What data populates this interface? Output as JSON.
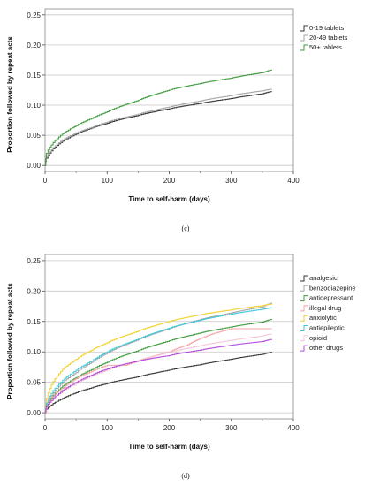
{
  "chart_data": [
    {
      "type": "line",
      "step": true,
      "panel_label": "(c)",
      "xlabel": "Time to self-harm (days)",
      "ylabel": "Proportion followed by repeat acts",
      "xlim": [
        0,
        400
      ],
      "ylim": [
        -0.01,
        0.26
      ],
      "xticks": [
        0,
        100,
        200,
        300,
        400
      ],
      "yticks": [
        0.0,
        0.05,
        0.1,
        0.15,
        0.2,
        0.25
      ],
      "ytick_labels": [
        "0.00",
        "0.05",
        "0.10",
        "0.15",
        "0.20",
        "0.25"
      ],
      "grid": "horizontal",
      "legend_position": "right",
      "series": [
        {
          "name": "0-19 tablets",
          "color": "#333333",
          "x": [
            0,
            2,
            10,
            25,
            50,
            75,
            100,
            150,
            200,
            250,
            300,
            350,
            365
          ],
          "y": [
            0,
            0.012,
            0.024,
            0.038,
            0.052,
            0.062,
            0.07,
            0.083,
            0.094,
            0.103,
            0.111,
            0.119,
            0.123
          ]
        },
        {
          "name": "20-49 tablets",
          "color": "#a6a6a6",
          "x": [
            0,
            2,
            10,
            25,
            50,
            75,
            100,
            150,
            200,
            250,
            300,
            350,
            365
          ],
          "y": [
            0,
            0.014,
            0.026,
            0.04,
            0.054,
            0.063,
            0.072,
            0.085,
            0.097,
            0.107,
            0.116,
            0.124,
            0.127
          ]
        },
        {
          "name": "50+ tablets",
          "color": "#3c9a3c",
          "x": [
            0,
            2,
            10,
            25,
            50,
            75,
            100,
            150,
            200,
            250,
            300,
            350,
            365
          ],
          "y": [
            0,
            0.02,
            0.034,
            0.05,
            0.066,
            0.078,
            0.089,
            0.108,
            0.125,
            0.136,
            0.145,
            0.154,
            0.159
          ]
        }
      ]
    },
    {
      "type": "line",
      "step": true,
      "panel_label": "(d)",
      "xlabel": "Time to self-harm (days)",
      "ylabel": "Proportion followed by repeat acts",
      "xlim": [
        0,
        400
      ],
      "ylim": [
        -0.01,
        0.26
      ],
      "xticks": [
        0,
        100,
        200,
        300,
        400
      ],
      "yticks": [
        0.0,
        0.05,
        0.1,
        0.15,
        0.2,
        0.25
      ],
      "ytick_labels": [
        "0.00",
        "0.05",
        "0.10",
        "0.15",
        "0.20",
        "0.25"
      ],
      "grid": "horizontal",
      "legend_position": "right",
      "series": [
        {
          "name": "analgesic",
          "color": "#333333",
          "x": [
            0,
            2,
            10,
            25,
            50,
            75,
            100,
            150,
            200,
            250,
            300,
            350,
            365
          ],
          "y": [
            0,
            0.006,
            0.013,
            0.022,
            0.033,
            0.041,
            0.048,
            0.059,
            0.07,
            0.079,
            0.088,
            0.096,
            0.1
          ]
        },
        {
          "name": "benzodiazepine",
          "color": "#a6a6a6",
          "x": [
            0,
            2,
            10,
            25,
            50,
            75,
            100,
            150,
            200,
            250,
            300,
            350,
            365
          ],
          "y": [
            0,
            0.014,
            0.028,
            0.047,
            0.066,
            0.083,
            0.098,
            0.12,
            0.138,
            0.153,
            0.164,
            0.174,
            0.181
          ]
        },
        {
          "name": "antidepressant",
          "color": "#3c9a3c",
          "x": [
            0,
            2,
            10,
            25,
            50,
            75,
            100,
            150,
            200,
            250,
            300,
            350,
            365
          ],
          "y": [
            0,
            0.012,
            0.024,
            0.041,
            0.058,
            0.071,
            0.083,
            0.102,
            0.118,
            0.131,
            0.141,
            0.149,
            0.154
          ]
        },
        {
          "name": "illegal drug",
          "color": "#f5a3a3",
          "x": [
            0,
            5,
            15,
            30,
            50,
            75,
            100,
            130,
            160,
            200,
            230,
            260,
            300,
            330,
            365
          ],
          "y": [
            0,
            0.018,
            0.03,
            0.042,
            0.056,
            0.068,
            0.078,
            0.078,
            0.088,
            0.1,
            0.112,
            0.126,
            0.138,
            0.138,
            0.138
          ]
        },
        {
          "name": "anxiolytic",
          "color": "#f2d12b",
          "x": [
            0,
            2,
            10,
            25,
            50,
            75,
            100,
            150,
            200,
            250,
            300,
            350,
            365
          ],
          "y": [
            0,
            0.024,
            0.046,
            0.068,
            0.088,
            0.103,
            0.115,
            0.134,
            0.15,
            0.161,
            0.169,
            0.176,
            0.179
          ]
        },
        {
          "name": "antiepileptic",
          "color": "#3cc8d8",
          "x": [
            0,
            2,
            10,
            25,
            50,
            75,
            100,
            150,
            200,
            250,
            300,
            350,
            365
          ],
          "y": [
            0,
            0.016,
            0.032,
            0.05,
            0.07,
            0.085,
            0.1,
            0.121,
            0.139,
            0.152,
            0.162,
            0.17,
            0.173
          ]
        },
        {
          "name": "opioid",
          "color": "#f2c8d6",
          "x": [
            0,
            2,
            10,
            25,
            50,
            75,
            100,
            150,
            200,
            250,
            300,
            350,
            365
          ],
          "y": [
            0,
            0.01,
            0.02,
            0.033,
            0.048,
            0.06,
            0.07,
            0.086,
            0.099,
            0.11,
            0.119,
            0.126,
            0.13
          ]
        },
        {
          "name": "other drugs",
          "color": "#b44bd8",
          "x": [
            0,
            2,
            10,
            25,
            50,
            75,
            100,
            150,
            200,
            250,
            300,
            350,
            365
          ],
          "y": [
            0,
            0.01,
            0.02,
            0.034,
            0.05,
            0.062,
            0.072,
            0.085,
            0.094,
            0.103,
            0.111,
            0.117,
            0.121
          ]
        }
      ]
    }
  ]
}
